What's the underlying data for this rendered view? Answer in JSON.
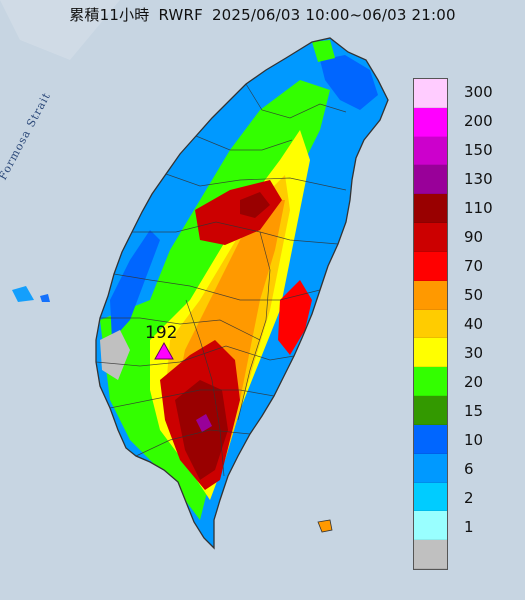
{
  "header": {
    "product": "累積11小時",
    "model": "RWRF",
    "period": "2025/06/03 10:00~06/03 21:00"
  },
  "map": {
    "sea_label": "Formosa Strait",
    "peak_value": "192"
  },
  "legend": {
    "items": [
      {
        "label": "300",
        "color": "#ffccff"
      },
      {
        "label": "200",
        "color": "#ff00ff"
      },
      {
        "label": "150",
        "color": "#cc00cc"
      },
      {
        "label": "130",
        "color": "#990099"
      },
      {
        "label": "110",
        "color": "#990000"
      },
      {
        "label": "90",
        "color": "#cc0000"
      },
      {
        "label": "70",
        "color": "#ff0000"
      },
      {
        "label": "50",
        "color": "#ff9900"
      },
      {
        "label": "40",
        "color": "#ffcc00"
      },
      {
        "label": "30",
        "color": "#ffff00"
      },
      {
        "label": "20",
        "color": "#33ff00"
      },
      {
        "label": "15",
        "color": "#339900"
      },
      {
        "label": "10",
        "color": "#0066ff"
      },
      {
        "label": "6",
        "color": "#0099ff"
      },
      {
        "label": "2",
        "color": "#00ccff"
      },
      {
        "label": "1",
        "color": "#99ffff"
      },
      {
        "label": "",
        "color": "#c0c0c0"
      }
    ]
  }
}
